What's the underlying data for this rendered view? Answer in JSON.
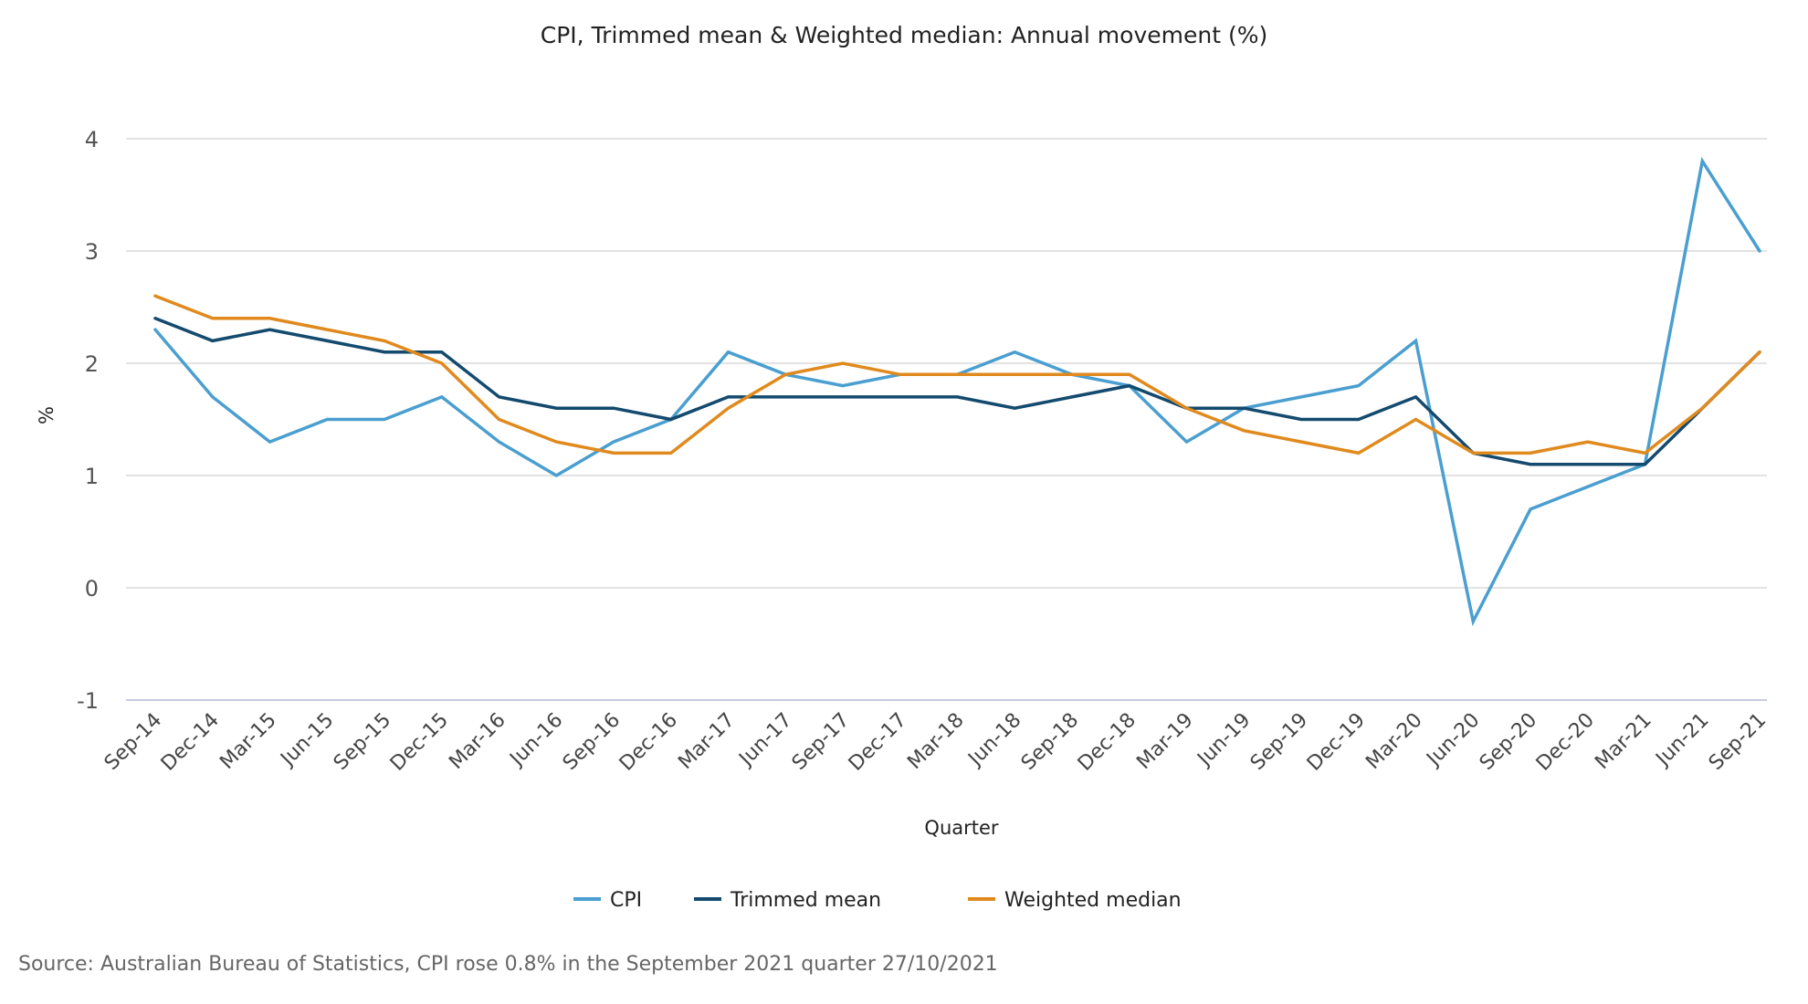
{
  "chart_data": {
    "type": "line",
    "title": "CPI, Trimmed mean & Weighted median: Annual movement (%)",
    "xlabel": "Quarter",
    "ylabel": "%",
    "ylim": [
      -1,
      4
    ],
    "yticks": [
      -1,
      0,
      1,
      2,
      3,
      4
    ],
    "grid": true,
    "legend_position": "bottom-center",
    "categories": [
      "Sep-14",
      "Dec-14",
      "Mar-15",
      "Jun-15",
      "Sep-15",
      "Dec-15",
      "Mar-16",
      "Jun-16",
      "Sep-16",
      "Dec-16",
      "Mar-17",
      "Jun-17",
      "Sep-17",
      "Dec-17",
      "Mar-18",
      "Jun-18",
      "Sep-18",
      "Dec-18",
      "Mar-19",
      "Jun-19",
      "Sep-19",
      "Dec-19",
      "Mar-20",
      "Jun-20",
      "Sep-20",
      "Dec-20",
      "Mar-21",
      "Jun-21",
      "Sep-21"
    ],
    "series": [
      {
        "name": "CPI",
        "color": "#4a9fd0",
        "values": [
          2.3,
          1.7,
          1.3,
          1.5,
          1.5,
          1.7,
          1.3,
          1.0,
          1.3,
          1.5,
          2.1,
          1.9,
          1.8,
          1.9,
          1.9,
          2.1,
          1.9,
          1.8,
          1.3,
          1.6,
          1.7,
          1.8,
          2.2,
          -0.3,
          0.7,
          0.9,
          1.1,
          3.8,
          3.0
        ]
      },
      {
        "name": "Trimmed mean",
        "color": "#134a6e",
        "values": [
          2.4,
          2.2,
          2.3,
          2.2,
          2.1,
          2.1,
          1.7,
          1.6,
          1.6,
          1.5,
          1.7,
          1.7,
          1.7,
          1.7,
          1.7,
          1.6,
          1.7,
          1.8,
          1.6,
          1.6,
          1.5,
          1.5,
          1.7,
          1.2,
          1.1,
          1.1,
          1.1,
          1.6,
          2.1
        ]
      },
      {
        "name": "Weighted median",
        "color": "#e08a1e",
        "values": [
          2.6,
          2.4,
          2.4,
          2.3,
          2.2,
          2.0,
          1.5,
          1.3,
          1.2,
          1.2,
          1.6,
          1.9,
          2.0,
          1.9,
          1.9,
          1.9,
          1.9,
          1.9,
          1.6,
          1.4,
          1.3,
          1.2,
          1.5,
          1.2,
          1.2,
          1.3,
          1.2,
          1.6,
          2.1
        ]
      }
    ]
  },
  "source": "Source: Australian Bureau of Statistics, CPI rose 0.8% in the September 2021 quarter 27/10/2021"
}
